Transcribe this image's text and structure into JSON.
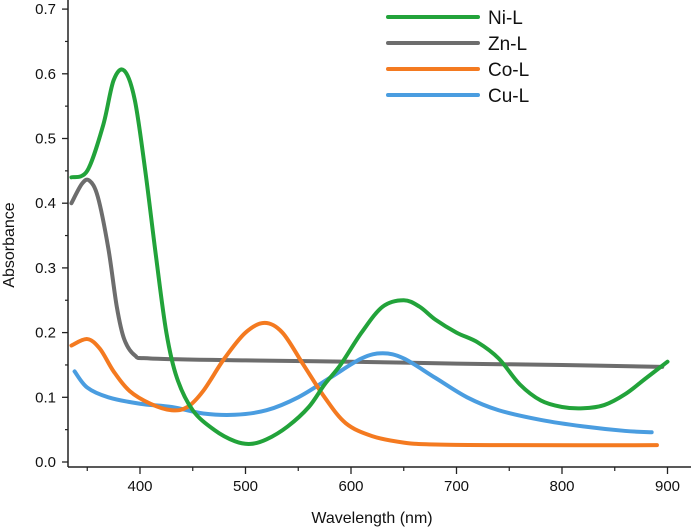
{
  "chart_data": {
    "type": "line",
    "title": "",
    "xlabel": "Wavelength (nm)",
    "ylabel": "Absorbance",
    "xlim": [
      333,
      918
    ],
    "ylim": [
      -0.008,
      0.7
    ],
    "xticks": [
      400,
      500,
      600,
      700,
      800,
      900
    ],
    "xtick_labels": [
      "400",
      "500",
      "600",
      "700",
      "800",
      "900"
    ],
    "yticks": [
      0.0,
      0.1,
      0.2,
      0.3,
      0.4,
      0.5,
      0.6,
      0.7
    ],
    "ytick_labels": [
      "0.0",
      "0.1",
      "0.2",
      "0.3",
      "0.4",
      "0.5",
      "0.6",
      "0.7"
    ],
    "grid": false,
    "legend_position": "top-right",
    "series": [
      {
        "name": "Ni-L",
        "color": "#22a33a",
        "x": [
          335,
          350,
          365,
          375,
          385,
          395,
          405,
          415,
          425,
          435,
          450,
          470,
          490,
          505,
          520,
          540,
          560,
          575,
          590,
          610,
          630,
          650,
          665,
          680,
          700,
          720,
          740,
          760,
          780,
          800,
          820,
          840,
          860,
          880,
          900
        ],
        "y": [
          0.44,
          0.45,
          0.52,
          0.59,
          0.605,
          0.56,
          0.45,
          0.32,
          0.2,
          0.13,
          0.08,
          0.05,
          0.032,
          0.028,
          0.035,
          0.055,
          0.085,
          0.12,
          0.15,
          0.2,
          0.24,
          0.25,
          0.24,
          0.22,
          0.2,
          0.185,
          0.16,
          0.12,
          0.095,
          0.085,
          0.083,
          0.088,
          0.105,
          0.13,
          0.155
        ]
      },
      {
        "name": "Zn-L",
        "color": "#6d6d6d",
        "x": [
          335,
          345,
          352,
          360,
          370,
          378,
          385,
          395,
          410,
          500,
          600,
          700,
          800,
          895
        ],
        "y": [
          0.4,
          0.43,
          0.435,
          0.41,
          0.33,
          0.24,
          0.19,
          0.165,
          0.16,
          0.157,
          0.155,
          0.152,
          0.15,
          0.147
        ]
      },
      {
        "name": "Co-L",
        "color": "#f47a20",
        "x": [
          335,
          350,
          362,
          375,
          390,
          410,
          430,
          445,
          460,
          480,
          500,
          518,
          535,
          555,
          575,
          595,
          620,
          650,
          680,
          750,
          890
        ],
        "y": [
          0.18,
          0.19,
          0.175,
          0.14,
          0.11,
          0.09,
          0.08,
          0.085,
          0.11,
          0.16,
          0.2,
          0.215,
          0.2,
          0.15,
          0.1,
          0.06,
          0.04,
          0.03,
          0.027,
          0.026,
          0.026
        ]
      },
      {
        "name": "Cu-L",
        "color": "#4a9de0",
        "x": [
          338,
          350,
          370,
          400,
          430,
          460,
          490,
          520,
          550,
          580,
          610,
          630,
          650,
          680,
          710,
          740,
          780,
          820,
          860,
          885
        ],
        "y": [
          0.14,
          0.115,
          0.1,
          0.09,
          0.085,
          0.075,
          0.073,
          0.08,
          0.1,
          0.13,
          0.16,
          0.168,
          0.16,
          0.13,
          0.1,
          0.08,
          0.065,
          0.055,
          0.048,
          0.046
        ]
      }
    ]
  }
}
